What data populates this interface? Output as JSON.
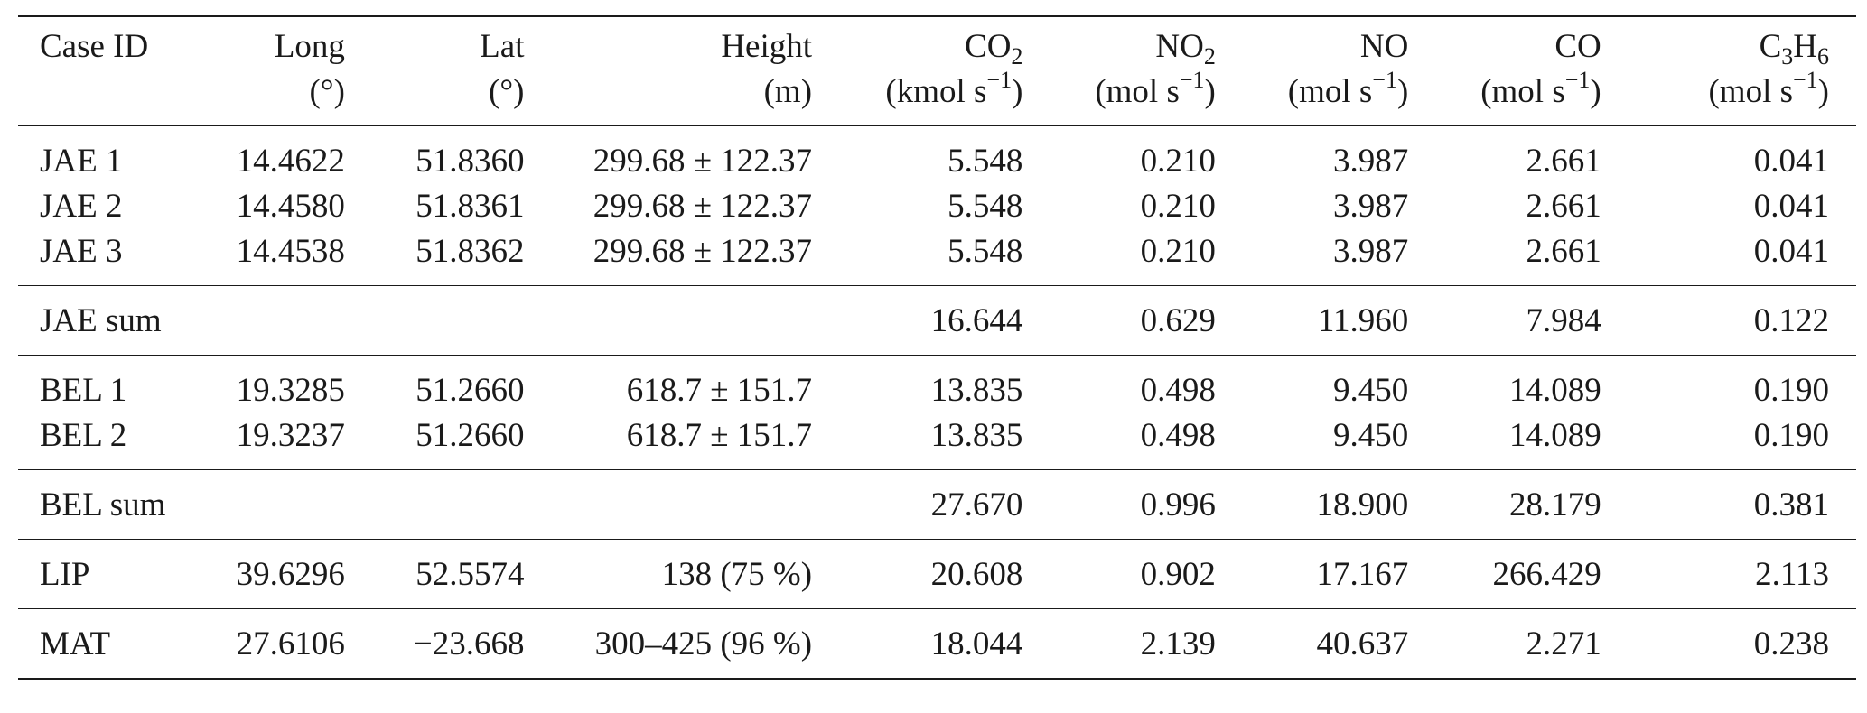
{
  "table": {
    "headers": [
      {
        "line1": "Case ID",
        "line2": ""
      },
      {
        "line1": "Long",
        "line2": "(°)"
      },
      {
        "line1": "Lat",
        "line2": "(°)"
      },
      {
        "line1": "Height",
        "line2": "(m)"
      },
      {
        "line1_base": "CO",
        "line1_sub": "2",
        "unit_prefix": "(kmol s",
        "unit_sup": "−1",
        "unit_suffix": ")"
      },
      {
        "line1_base": "NO",
        "line1_sub": "2",
        "unit_prefix": "(mol s",
        "unit_sup": "−1",
        "unit_suffix": ")"
      },
      {
        "line1": "NO",
        "unit_prefix": "(mol s",
        "unit_sup": "−1",
        "unit_suffix": ")"
      },
      {
        "line1": "CO",
        "unit_prefix": "(mol s",
        "unit_sup": "−1",
        "unit_suffix": ")"
      },
      {
        "c": "C",
        "c_sub": "3",
        "h": "H",
        "h_sub": "6",
        "unit_prefix": "(mol s",
        "unit_sup": "−1",
        "unit_suffix": ")"
      }
    ],
    "rows": [
      [
        "JAE 1",
        "14.4622",
        "51.8360",
        "299.68 ± 122.37",
        "5.548",
        "0.210",
        "3.987",
        "2.661",
        "0.041"
      ],
      [
        "JAE 2",
        "14.4580",
        "51.8361",
        "299.68 ± 122.37",
        "5.548",
        "0.210",
        "3.987",
        "2.661",
        "0.041"
      ],
      [
        "JAE 3",
        "14.4538",
        "51.8362",
        "299.68 ± 122.37",
        "5.548",
        "0.210",
        "3.987",
        "2.661",
        "0.041"
      ],
      [
        "JAE sum",
        "",
        "",
        "",
        "16.644",
        "0.629",
        "11.960",
        "7.984",
        "0.122"
      ],
      [
        "BEL 1",
        "19.3285",
        "51.2660",
        "618.7 ± 151.7",
        "13.835",
        "0.498",
        "9.450",
        "14.089",
        "0.190"
      ],
      [
        "BEL 2",
        "19.3237",
        "51.2660",
        "618.7 ± 151.7",
        "13.835",
        "0.498",
        "9.450",
        "14.089",
        "0.190"
      ],
      [
        "BEL sum",
        "",
        "",
        "",
        "27.670",
        "0.996",
        "18.900",
        "28.179",
        "0.381"
      ],
      [
        "LIP",
        "39.6296",
        "52.5574",
        "138 (75 %)",
        "20.608",
        "0.902",
        "17.167",
        "266.429",
        "2.113"
      ],
      [
        "MAT",
        "27.6106",
        "−23.668",
        "300–425 (96 %)",
        "18.044",
        "2.139",
        "40.637",
        "2.271",
        "0.238"
      ]
    ]
  }
}
